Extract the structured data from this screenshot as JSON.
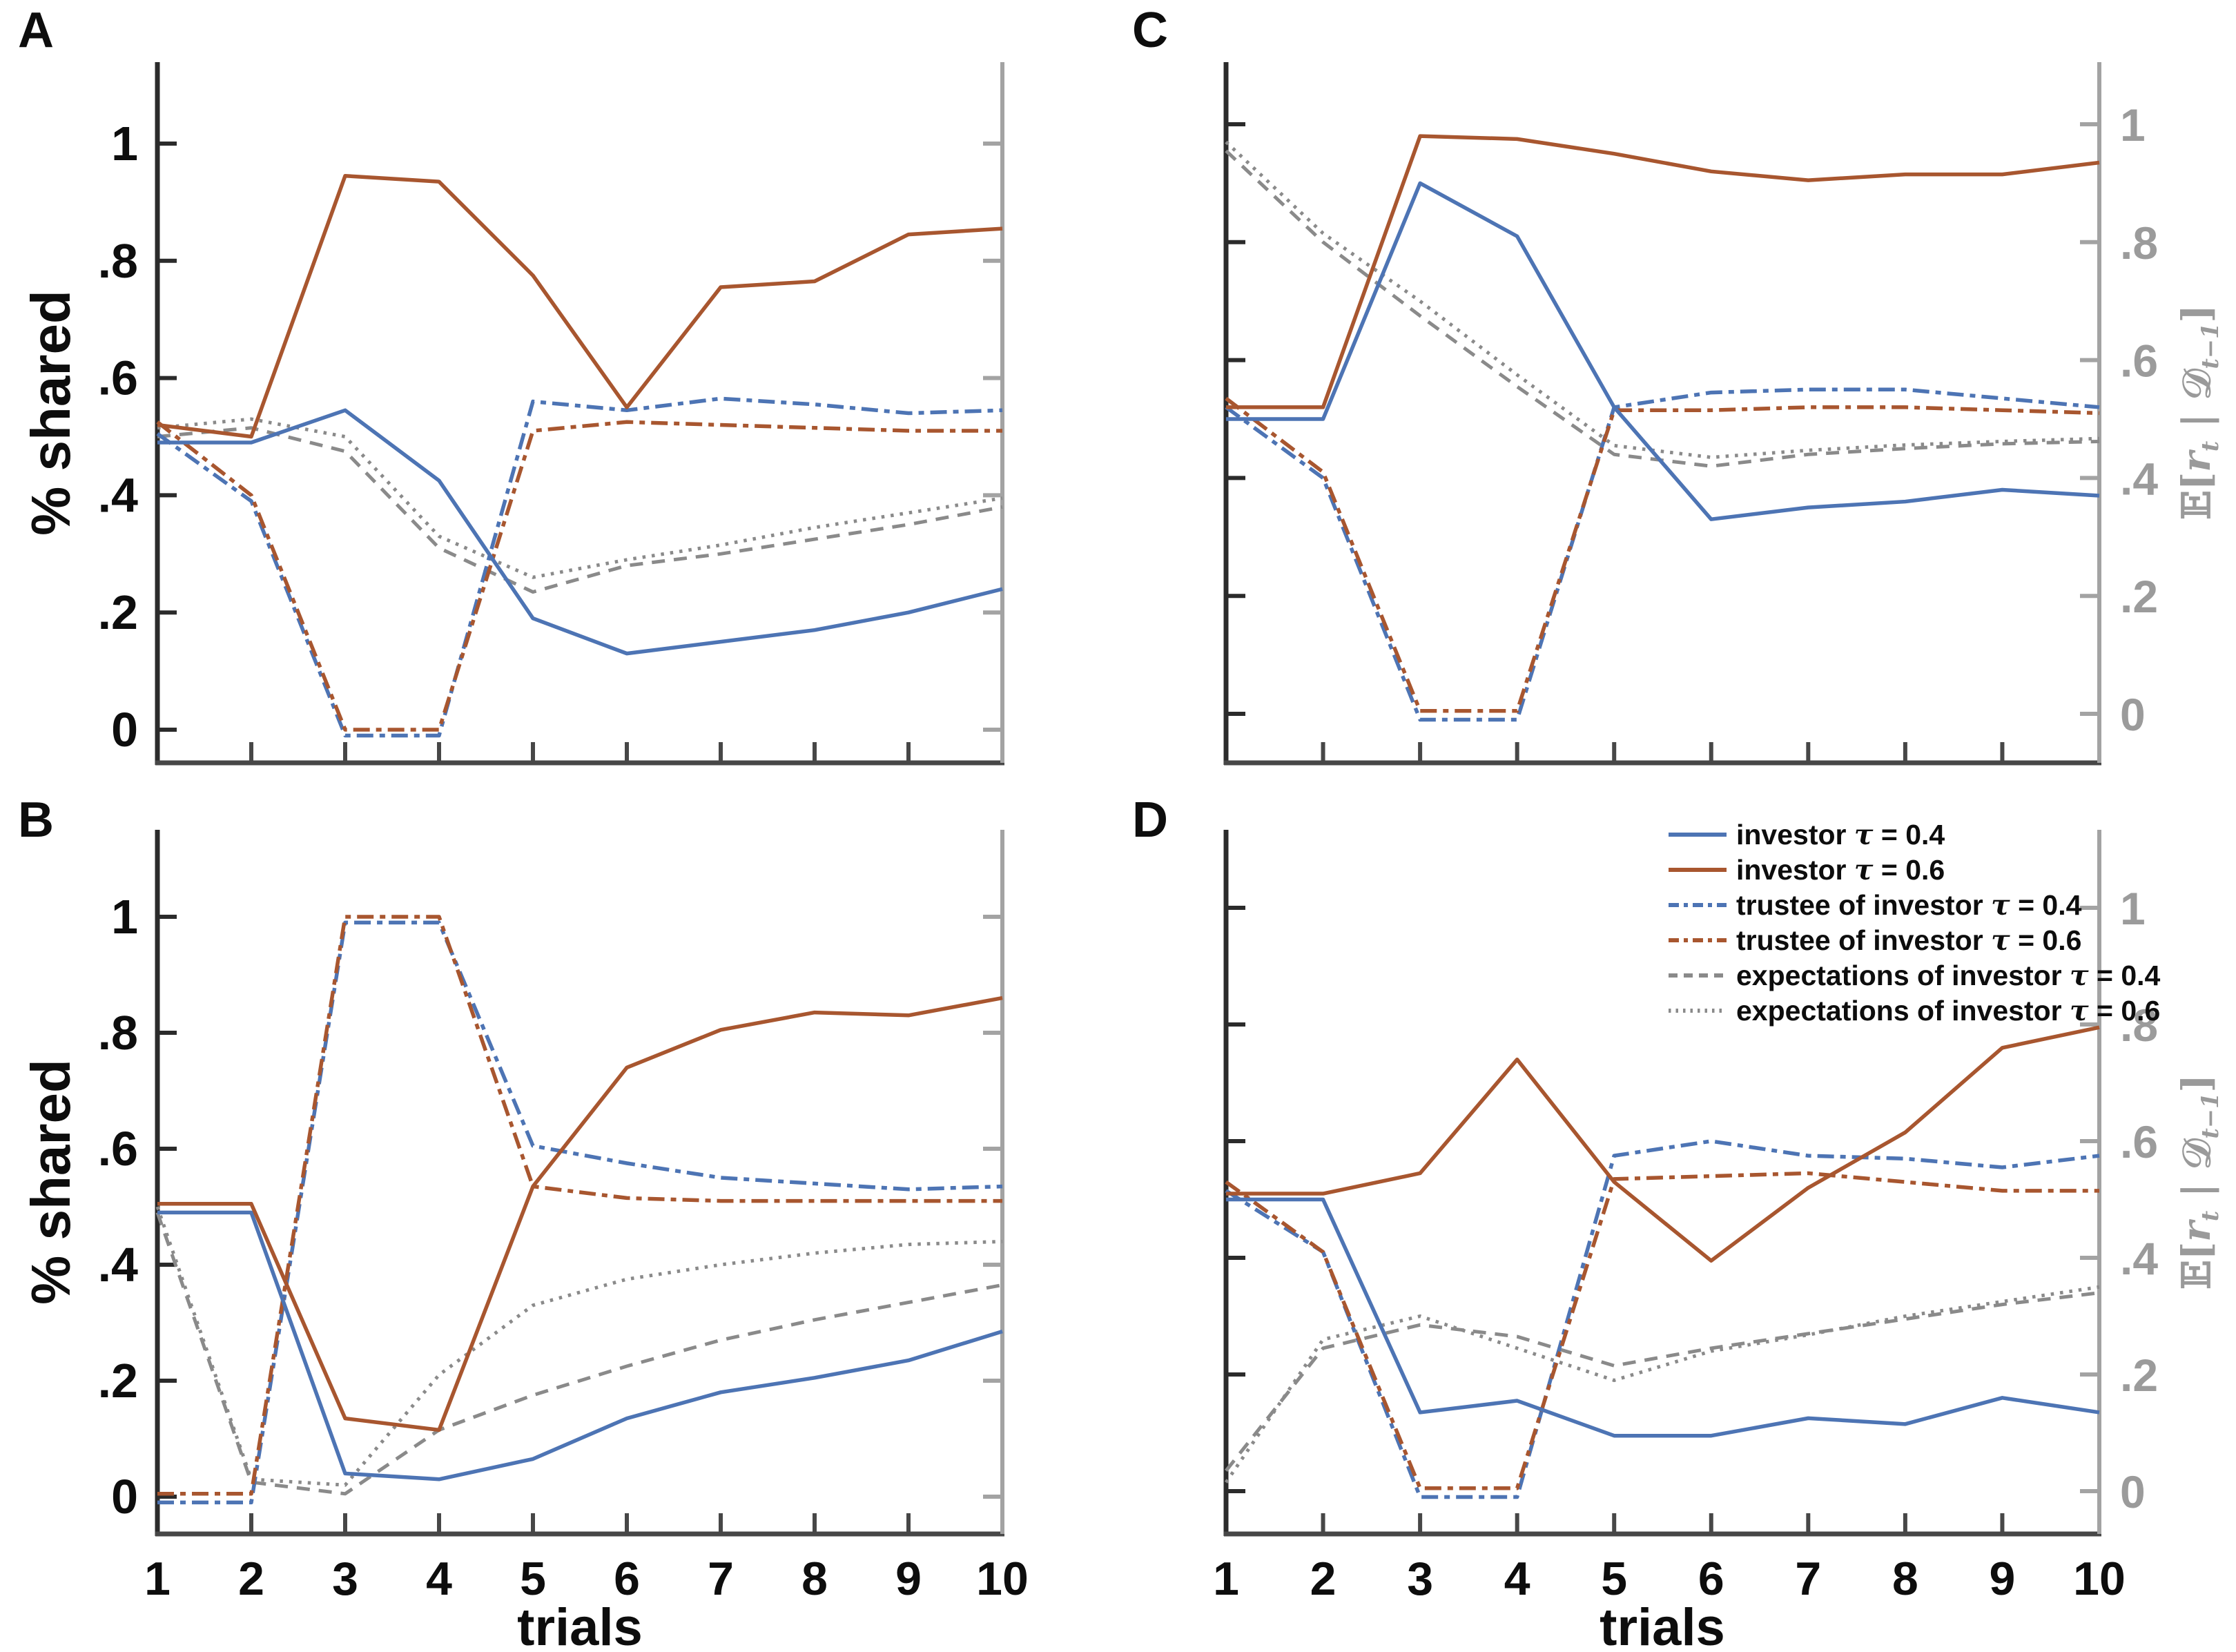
{
  "figure": {
    "panel_labels": [
      "A",
      "B",
      "C",
      "D"
    ]
  },
  "axes": {
    "x_label": "trials",
    "left_label": "% shared",
    "right_label": {
      "e": "𝔼[",
      "r": "r",
      "r_sub": "t",
      "bar": " | ",
      "d": "𝒟",
      "d_sub": "t−1",
      "close": "]"
    },
    "x_tick_labels": [
      "1",
      "2",
      "3",
      "4",
      "5",
      "6",
      "7",
      "8",
      "9",
      "10"
    ],
    "y_tick_labels": [
      "0",
      ".2",
      ".4",
      ".6",
      ".8",
      "1"
    ]
  },
  "colors": {
    "blue": "#4d74b4",
    "orange": "#a8562f",
    "gray": "#8a8a8a",
    "left_spine": "#2b2b2b",
    "bottom_spine": "#474747",
    "right_spine": "#a3a3a3",
    "right_tick_text": "#9b9b9b",
    "black_text": "#0d0d0d"
  },
  "styles": {
    "investor_04": {
      "color": "#4d74b4",
      "dash": "solid",
      "width": 5.5
    },
    "investor_06": {
      "color": "#a8562f",
      "dash": "solid",
      "width": 5.5
    },
    "trustee_04": {
      "color": "#4d74b4",
      "dash": "dashdot",
      "width": 5.5
    },
    "trustee_06": {
      "color": "#a8562f",
      "dash": "dashdot",
      "width": 5.5
    },
    "expect_04": {
      "color": "#8a8a8a",
      "dash": "dashed",
      "width": 5
    },
    "expect_06": {
      "color": "#8a8a8a",
      "dash": "dotted",
      "width": 5
    }
  },
  "legend": {
    "items": [
      {
        "label": "investor τ = 0.4",
        "style": "investor_04"
      },
      {
        "label": "investor τ = 0.6",
        "style": "investor_06"
      },
      {
        "label": "trustee of investor τ = 0.4",
        "style": "trustee_04"
      },
      {
        "label": "trustee of investor τ = 0.6",
        "style": "trustee_06"
      },
      {
        "label": "expectations of investor τ = 0.4",
        "style": "expect_04"
      },
      {
        "label": "expectations of investor τ = 0.6",
        "style": "expect_06"
      }
    ]
  },
  "chart_data": [
    {
      "panel": "A",
      "type": "line",
      "x": [
        1,
        2,
        3,
        4,
        5,
        6,
        7,
        8,
        9,
        10
      ],
      "xlabel": "",
      "ylabel": "% shared",
      "ylim": [
        -0.06,
        1.14
      ],
      "yticks": {
        "values": [
          0,
          0.2,
          0.4,
          0.6,
          0.8,
          1
        ],
        "labels": [
          "0",
          ".2",
          ".4",
          ".6",
          ".8",
          "1"
        ],
        "side": "left"
      },
      "show_x_tick_labels": false,
      "series": [
        {
          "key": "expect_04",
          "name": "expectations of investor τ = 0.4",
          "values": [
            0.5,
            0.515,
            0.475,
            0.31,
            0.235,
            0.28,
            0.3,
            0.325,
            0.35,
            0.38
          ]
        },
        {
          "key": "expect_06",
          "name": "expectations of investor τ = 0.6",
          "values": [
            0.515,
            0.53,
            0.5,
            0.33,
            0.26,
            0.29,
            0.315,
            0.345,
            0.37,
            0.395
          ]
        },
        {
          "key": "trustee_04",
          "name": "trustee of investor τ = 0.4",
          "values": [
            0.505,
            0.39,
            -0.01,
            -0.01,
            0.56,
            0.545,
            0.565,
            0.555,
            0.54,
            0.545
          ]
        },
        {
          "key": "trustee_06",
          "name": "trustee of investor τ = 0.6",
          "values": [
            0.525,
            0.4,
            0.0,
            0.0,
            0.51,
            0.525,
            0.52,
            0.515,
            0.51,
            0.51
          ]
        },
        {
          "key": "investor_04",
          "name": "investor τ = 0.4",
          "values": [
            0.49,
            0.49,
            0.545,
            0.425,
            0.19,
            0.13,
            0.15,
            0.17,
            0.2,
            0.24
          ]
        },
        {
          "key": "investor_06",
          "name": "investor τ = 0.6",
          "values": [
            0.52,
            0.5,
            0.945,
            0.935,
            0.775,
            0.55,
            0.755,
            0.765,
            0.845,
            0.855
          ]
        }
      ]
    },
    {
      "panel": "B",
      "type": "line",
      "x": [
        1,
        2,
        3,
        4,
        5,
        6,
        7,
        8,
        9,
        10
      ],
      "xlabel": "trials",
      "ylabel": "% shared",
      "ylim": [
        -0.065,
        1.15
      ],
      "yticks": {
        "values": [
          0,
          0.2,
          0.4,
          0.6,
          0.8,
          1
        ],
        "labels": [
          "0",
          ".2",
          ".4",
          ".6",
          ".8",
          "1"
        ],
        "side": "left"
      },
      "show_x_tick_labels": true,
      "series": [
        {
          "key": "expect_04",
          "name": "expectations of investor τ = 0.4",
          "values": [
            0.49,
            0.025,
            0.005,
            0.115,
            0.175,
            0.225,
            0.27,
            0.305,
            0.335,
            0.365
          ]
        },
        {
          "key": "expect_06",
          "name": "expectations of investor τ = 0.6",
          "values": [
            0.5,
            0.03,
            0.02,
            0.21,
            0.33,
            0.375,
            0.4,
            0.42,
            0.435,
            0.44
          ]
        },
        {
          "key": "trustee_04",
          "name": "trustee of investor τ = 0.4",
          "values": [
            -0.01,
            -0.01,
            0.99,
            0.99,
            0.605,
            0.575,
            0.55,
            0.54,
            0.53,
            0.535
          ]
        },
        {
          "key": "trustee_06",
          "name": "trustee of investor τ = 0.6",
          "values": [
            0.005,
            0.005,
            1.0,
            1.0,
            0.535,
            0.515,
            0.51,
            0.51,
            0.51,
            0.51
          ]
        },
        {
          "key": "investor_04",
          "name": "investor τ = 0.4",
          "values": [
            0.49,
            0.49,
            0.04,
            0.03,
            0.065,
            0.135,
            0.18,
            0.205,
            0.235,
            0.285
          ]
        },
        {
          "key": "investor_06",
          "name": "investor τ = 0.6",
          "values": [
            0.505,
            0.505,
            0.135,
            0.115,
            0.535,
            0.74,
            0.805,
            0.835,
            0.83,
            0.86
          ]
        }
      ]
    },
    {
      "panel": "C",
      "type": "line",
      "x": [
        1,
        2,
        3,
        4,
        5,
        6,
        7,
        8,
        9,
        10
      ],
      "xlabel": "",
      "ylabel": "𝔼[r_t | 𝒟_t−1]",
      "ylim": [
        -0.08,
        1.1
      ],
      "yticks": {
        "values": [
          0,
          0.2,
          0.4,
          0.6,
          0.8,
          1
        ],
        "labels": [
          "0",
          ".2",
          ".4",
          ".6",
          ".8",
          "1"
        ],
        "side": "right"
      },
      "show_x_tick_labels": false,
      "series": [
        {
          "key": "expect_04",
          "name": "expectations of investor τ = 0.4",
          "values": [
            0.955,
            0.8,
            0.675,
            0.555,
            0.44,
            0.42,
            0.44,
            0.45,
            0.458,
            0.462
          ]
        },
        {
          "key": "expect_06",
          "name": "expectations of investor τ = 0.6",
          "values": [
            0.97,
            0.815,
            0.7,
            0.575,
            0.455,
            0.435,
            0.447,
            0.456,
            0.462,
            0.467
          ]
        },
        {
          "key": "trustee_04",
          "name": "trustee of investor τ = 0.4",
          "values": [
            0.52,
            0.4,
            -0.01,
            -0.01,
            0.52,
            0.545,
            0.55,
            0.55,
            0.535,
            0.52
          ]
        },
        {
          "key": "trustee_06",
          "name": "trustee of investor τ = 0.6",
          "values": [
            0.535,
            0.41,
            0.005,
            0.005,
            0.515,
            0.515,
            0.52,
            0.52,
            0.515,
            0.51
          ]
        },
        {
          "key": "investor_04",
          "name": "investor τ = 0.4",
          "values": [
            0.5,
            0.5,
            0.9,
            0.81,
            0.52,
            0.33,
            0.35,
            0.36,
            0.38,
            0.37
          ]
        },
        {
          "key": "investor_06",
          "name": "investor τ = 0.6",
          "values": [
            0.52,
            0.52,
            0.98,
            0.975,
            0.95,
            0.92,
            0.905,
            0.915,
            0.915,
            0.935
          ]
        }
      ]
    },
    {
      "panel": "D",
      "type": "line",
      "x": [
        1,
        2,
        3,
        4,
        5,
        6,
        7,
        8,
        9,
        10
      ],
      "xlabel": "trials",
      "ylabel": "𝔼[r_t | 𝒟_t−1]",
      "ylim": [
        -0.07,
        1.13
      ],
      "yticks": {
        "values": [
          0,
          0.2,
          0.4,
          0.6,
          0.8,
          1
        ],
        "labels": [
          "0",
          ".2",
          ".4",
          ".6",
          ".8",
          "1"
        ],
        "side": "right"
      },
      "show_x_tick_labels": true,
      "series": [
        {
          "key": "expect_04",
          "name": "expectations of investor τ = 0.4",
          "values": [
            0.035,
            0.245,
            0.285,
            0.265,
            0.215,
            0.245,
            0.27,
            0.295,
            0.32,
            0.34
          ]
        },
        {
          "key": "expect_06",
          "name": "expectations of investor τ = 0.6",
          "values": [
            0.015,
            0.26,
            0.3,
            0.245,
            0.19,
            0.24,
            0.268,
            0.3,
            0.325,
            0.35
          ]
        },
        {
          "key": "trustee_04",
          "name": "trustee of investor τ = 0.4",
          "values": [
            0.515,
            0.41,
            -0.01,
            -0.01,
            0.575,
            0.6,
            0.575,
            0.57,
            0.555,
            0.575
          ]
        },
        {
          "key": "trustee_06",
          "name": "trustee of investor τ = 0.6",
          "values": [
            0.53,
            0.41,
            0.005,
            0.005,
            0.535,
            0.54,
            0.545,
            0.53,
            0.515,
            0.515
          ]
        },
        {
          "key": "investor_04",
          "name": "investor τ = 0.4",
          "values": [
            0.5,
            0.5,
            0.135,
            0.155,
            0.095,
            0.095,
            0.125,
            0.115,
            0.16,
            0.135
          ]
        },
        {
          "key": "investor_06",
          "name": "investor τ = 0.6",
          "values": [
            0.51,
            0.51,
            0.545,
            0.74,
            0.53,
            0.395,
            0.52,
            0.615,
            0.76,
            0.795
          ]
        }
      ]
    }
  ]
}
